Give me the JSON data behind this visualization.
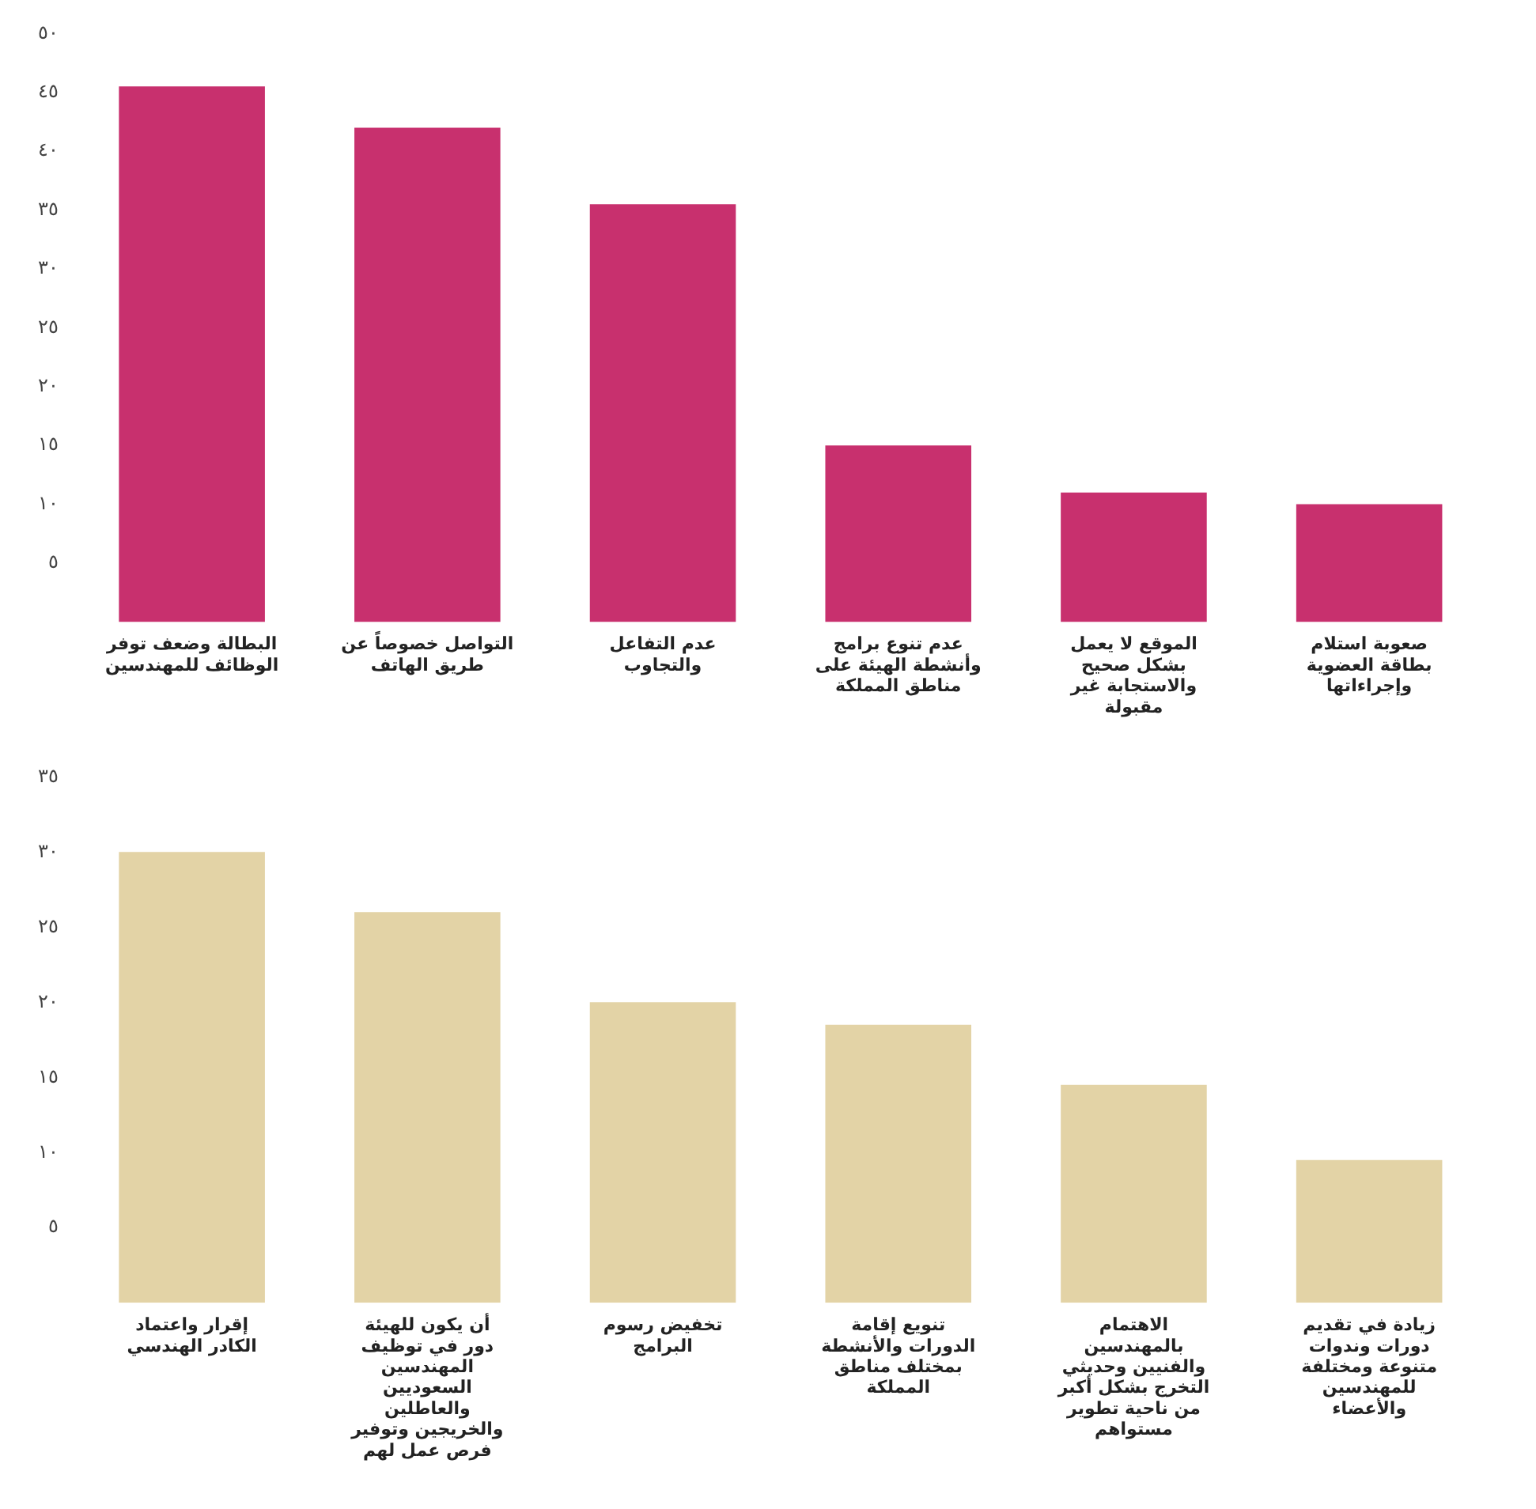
{
  "chart_data": [
    {
      "type": "bar",
      "categories": [
        "البطالة وضعف توفر الوظائف للمهندسين",
        "التواصل خصوصاً عن طريق الهاتف",
        "عدم التفاعل والتجاوب",
        "عدم تنوع برامج وأنشطة الهيئة على مناطق المملكة",
        "الموقع لا يعمل بشكل صحيح والاستجابة غير مقبولة",
        "صعوبة استلام بطاقة العضوية وإجراءاتها"
      ],
      "values": [
        45.5,
        42,
        35.5,
        15,
        11,
        10
      ],
      "color": "#c8306e",
      "ylim": [
        0,
        50
      ],
      "yticks": [
        {
          "value": 5,
          "label": "٥"
        },
        {
          "value": 10,
          "label": "١٠"
        },
        {
          "value": 15,
          "label": "١٥"
        },
        {
          "value": 20,
          "label": "٢٠"
        },
        {
          "value": 25,
          "label": "٢٥"
        },
        {
          "value": 30,
          "label": "٣٠"
        },
        {
          "value": 35,
          "label": "٣٥"
        },
        {
          "value": 40,
          "label": "٤٠"
        },
        {
          "value": 45,
          "label": "٤٥"
        },
        {
          "value": 50,
          "label": "٥٠"
        }
      ],
      "grid": false,
      "legend": false
    },
    {
      "type": "bar",
      "categories": [
        "إقرار واعتماد الكادر الهندسي",
        "أن يكون للهيئة دور في توظيف المهندسين السعوديين والعاطلين والخريجين وتوفير فرص عمل لهم",
        "تخفيض رسوم البرامج",
        "تنويع إقامة الدورات والأنشطة بمختلف مناطق المملكة",
        "الاهتمام بالمهندسين والفنيين وحديثي التخرج بشكل أكبر من ناحية تطوير مستواهم",
        "زيادة في تقديم دورات وندوات متنوعة ومختلفة للمهندسين والأعضاء"
      ],
      "values": [
        30,
        26,
        20,
        18.5,
        14.5,
        9.5
      ],
      "color": "#e3d3a6",
      "ylim": [
        0,
        35
      ],
      "yticks": [
        {
          "value": 5,
          "label": "٥"
        },
        {
          "value": 10,
          "label": "١٠"
        },
        {
          "value": 15,
          "label": "١٥"
        },
        {
          "value": 20,
          "label": "٢٠"
        },
        {
          "value": 25,
          "label": "٢٥"
        },
        {
          "value": 30,
          "label": "٣٠"
        },
        {
          "value": 35,
          "label": "٣٥"
        }
      ],
      "grid": false,
      "legend": false
    }
  ]
}
